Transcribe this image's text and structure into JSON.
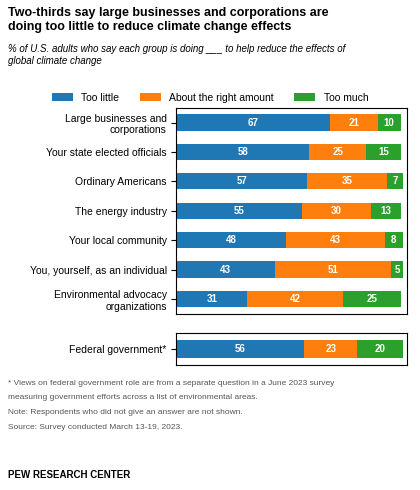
{
  "chart_data": [
    {
      "type": "bar",
      "orientation": "horizontal",
      "stacked": true,
      "title": "Two-thirds say large businesses and corporations are\ndoing too little to reduce climate change effects",
      "subtitle": "% of U.S. adults who say each group is doing ___ to help reduce the effects of\nglobal climate change",
      "categories": [
        "Large businesses and\ncorporations",
        "Your state elected officials",
        "Ordinary Americans",
        "The energy industry",
        "Your local community",
        "You, yourself, as an individual",
        "Environmental advocacy\norganizations"
      ],
      "series": [
        {
          "name": "Too little",
          "values": [
            67,
            58,
            57,
            55,
            48,
            43,
            31
          ]
        },
        {
          "name": "About the right amount",
          "values": [
            21,
            25,
            35,
            30,
            43,
            51,
            42
          ]
        },
        {
          "name": "Too much",
          "values": [
            10,
            15,
            7,
            13,
            8,
            5,
            25
          ]
        }
      ],
      "xlim": [
        0,
        101
      ],
      "tick_labels": "y",
      "data_labels": true,
      "legend": "upper center"
    },
    {
      "type": "bar",
      "orientation": "horizontal",
      "stacked": true,
      "categories": [
        "Federal government*"
      ],
      "series": [
        {
          "name": "Too little",
          "values": [
            56
          ]
        },
        {
          "name": "About the right amount",
          "values": [
            23
          ]
        },
        {
          "name": "Too much",
          "values": [
            20
          ]
        }
      ],
      "xlim": [
        0,
        101
      ],
      "tick_labels": "y",
      "data_labels": true,
      "annotations": [
        "* Views on federal government role are from a separate question in a June 2023 survey",
        "measuring government efforts across a list of environmental areas.",
        "Note: Respondents who did not give an answer are not shown.",
        "Source: Survey conducted March 13-19, 2023.",
        "PEW RESEARCH CENTER"
      ]
    }
  ]
}
